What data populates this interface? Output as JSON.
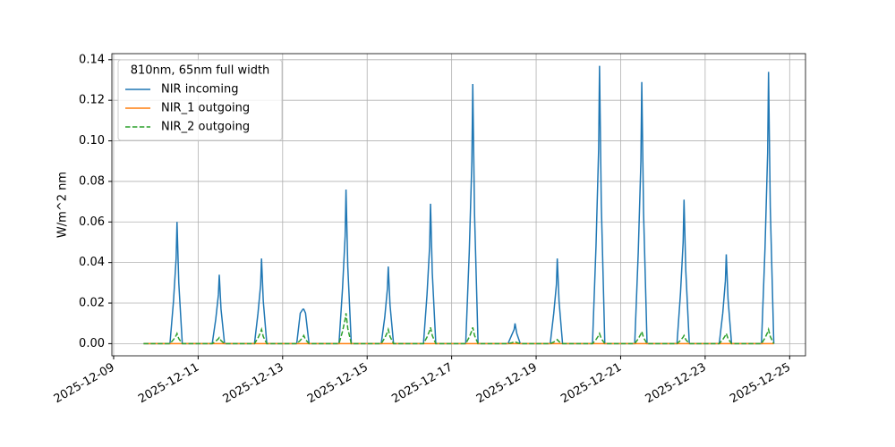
{
  "chart_data": {
    "type": "line",
    "y_label": "W/m^2 nm",
    "legend_title": "810nm, 65nm full width",
    "legend_position": "upper left",
    "grid": true,
    "xlim": [
      "2025-12-08 23:00",
      "2025-12-25 09:00"
    ],
    "xticks": [
      "2025-12-09",
      "2025-12-11",
      "2025-12-13",
      "2025-12-15",
      "2025-12-17",
      "2025-12-19",
      "2025-12-21",
      "2025-12-23",
      "2025-12-25"
    ],
    "ylim": [
      -0.006,
      0.143
    ],
    "yticks": [
      {
        "value": 0,
        "label": "0.00"
      },
      {
        "value": 0.02,
        "label": "0.02"
      },
      {
        "value": 0.04,
        "label": "0.04"
      },
      {
        "value": 0.06,
        "label": "0.06"
      },
      {
        "value": 0.08,
        "label": "0.08"
      },
      {
        "value": 0.1,
        "label": "0.10"
      },
      {
        "value": 0.12,
        "label": "0.12"
      },
      {
        "value": 0.14,
        "label": "0.14"
      }
    ],
    "x": [
      "2025-12-09 17:00",
      "2025-12-10 08:00",
      "2025-12-10 10:00",
      "2025-12-10 11:30",
      "2025-12-10 12:00",
      "2025-12-10 13:00",
      "2025-12-10 15:00",
      "2025-12-11 08:00",
      "2025-12-11 10:00",
      "2025-12-11 11:30",
      "2025-12-11 12:00",
      "2025-12-11 13:00",
      "2025-12-11 15:00",
      "2025-12-12 08:00",
      "2025-12-12 10:00",
      "2025-12-12 11:30",
      "2025-12-12 12:00",
      "2025-12-12 13:00",
      "2025-12-12 15:00",
      "2025-12-13 08:00",
      "2025-12-13 10:00",
      "2025-12-13 11:30",
      "2025-12-13 12:00",
      "2025-12-13 13:00",
      "2025-12-13 15:00",
      "2025-12-14 08:00",
      "2025-12-14 10:00",
      "2025-12-14 11:30",
      "2025-12-14 12:00",
      "2025-12-14 13:00",
      "2025-12-14 15:00",
      "2025-12-15 08:00",
      "2025-12-15 10:00",
      "2025-12-15 11:30",
      "2025-12-15 12:00",
      "2025-12-15 13:00",
      "2025-12-15 15:00",
      "2025-12-16 08:00",
      "2025-12-16 10:00",
      "2025-12-16 11:30",
      "2025-12-16 12:00",
      "2025-12-16 13:00",
      "2025-12-16 15:00",
      "2025-12-17 08:00",
      "2025-12-17 10:00",
      "2025-12-17 11:30",
      "2025-12-17 12:00",
      "2025-12-17 13:00",
      "2025-12-17 15:00",
      "2025-12-18 08:00",
      "2025-12-18 10:00",
      "2025-12-18 11:30",
      "2025-12-18 12:00",
      "2025-12-18 13:00",
      "2025-12-18 15:00",
      "2025-12-19 08:00",
      "2025-12-19 10:00",
      "2025-12-19 11:30",
      "2025-12-19 12:00",
      "2025-12-19 13:00",
      "2025-12-19 15:00",
      "2025-12-20 08:00",
      "2025-12-20 10:00",
      "2025-12-20 11:30",
      "2025-12-20 12:00",
      "2025-12-20 13:00",
      "2025-12-20 15:00",
      "2025-12-21 08:00",
      "2025-12-21 10:00",
      "2025-12-21 11:30",
      "2025-12-21 12:00",
      "2025-12-21 13:00",
      "2025-12-21 15:00",
      "2025-12-22 08:00",
      "2025-12-22 10:00",
      "2025-12-22 11:30",
      "2025-12-22 12:00",
      "2025-12-22 13:00",
      "2025-12-22 15:00",
      "2025-12-23 08:00",
      "2025-12-23 10:00",
      "2025-12-23 11:30",
      "2025-12-23 12:00",
      "2025-12-23 13:00",
      "2025-12-23 15:00",
      "2025-12-24 08:00",
      "2025-12-24 10:00",
      "2025-12-24 11:30",
      "2025-12-24 12:00",
      "2025-12-24 13:00",
      "2025-12-24 15:00"
    ],
    "series": [
      {
        "name": "NIR incoming",
        "color": "#1f77b4",
        "dash": "solid",
        "values": [
          0,
          0,
          0.021,
          0.042,
          0.06,
          0.03,
          0,
          0,
          0.012,
          0.024,
          0.034,
          0.017,
          0,
          0,
          0.015,
          0.029,
          0.042,
          0.021,
          0,
          0,
          0.015,
          0.017,
          0.017,
          0.015,
          0,
          0,
          0.027,
          0.053,
          0.076,
          0.038,
          0,
          0,
          0.013,
          0.027,
          0.038,
          0.019,
          0,
          0,
          0.024,
          0.048,
          0.069,
          0.035,
          0,
          0,
          0.045,
          0.09,
          0.128,
          0.064,
          0,
          0,
          0.004,
          0.007,
          0.01,
          0.005,
          0,
          0,
          0.015,
          0.029,
          0.042,
          0.021,
          0,
          0,
          0.048,
          0.096,
          0.137,
          0.069,
          0,
          0,
          0.045,
          0.09,
          0.129,
          0.065,
          0,
          0,
          0.025,
          0.05,
          0.071,
          0.036,
          0,
          0,
          0.015,
          0.031,
          0.044,
          0.022,
          0,
          0,
          0.047,
          0.094,
          0.134,
          0.067,
          0
        ]
      },
      {
        "name": "NIR_1 outgoing",
        "color": "#ff7f0e",
        "dash": "solid",
        "values": [
          0,
          0,
          0,
          0,
          0,
          0,
          0,
          0,
          0,
          0,
          0,
          0,
          0,
          0,
          0,
          0,
          0,
          0,
          0,
          0,
          0,
          0,
          0,
          0,
          0,
          0,
          0,
          0,
          0,
          0,
          0,
          0,
          0,
          0,
          0,
          0,
          0,
          0,
          0,
          0,
          0,
          0,
          0,
          0,
          0,
          0,
          0,
          0,
          0,
          0,
          0,
          0,
          0,
          0,
          0,
          0,
          0,
          0,
          0,
          0,
          0,
          0,
          0,
          0,
          0,
          0,
          0,
          0,
          0,
          0,
          0,
          0,
          0,
          0,
          0,
          0,
          0,
          0,
          0,
          0,
          0,
          0,
          0,
          0,
          0,
          0,
          0,
          0,
          0,
          0,
          0
        ]
      },
      {
        "name": "NIR_2 outgoing",
        "color": "#2ca02c",
        "dash": "dashed",
        "values": [
          0,
          0,
          0.002,
          0.004,
          0.005,
          0.0025,
          0,
          0,
          0.0012,
          0.0024,
          0.003,
          0.0015,
          0,
          0,
          0.0028,
          0.0056,
          0.007,
          0.0035,
          0,
          0,
          0.0016,
          0.0032,
          0.004,
          0.002,
          0,
          0,
          0.006,
          0.012,
          0.015,
          0.0075,
          0,
          0,
          0.0028,
          0.0056,
          0.007,
          0.0035,
          0,
          0,
          0.0032,
          0.0064,
          0.008,
          0.004,
          0,
          0,
          0.0032,
          0.0064,
          0.008,
          0.004,
          0,
          0,
          0.0004,
          0.0008,
          0.001,
          0.0005,
          0,
          0,
          0.0008,
          0.0016,
          0.002,
          0.001,
          0,
          0,
          0.002,
          0.004,
          0.005,
          0.0025,
          0,
          0,
          0.0024,
          0.0048,
          0.006,
          0.003,
          0,
          0,
          0.0016,
          0.0032,
          0.004,
          0.002,
          0,
          0,
          0.002,
          0.004,
          0.005,
          0.0025,
          0,
          0,
          0.0028,
          0.0056,
          0.007,
          0.0035,
          0
        ]
      }
    ]
  }
}
